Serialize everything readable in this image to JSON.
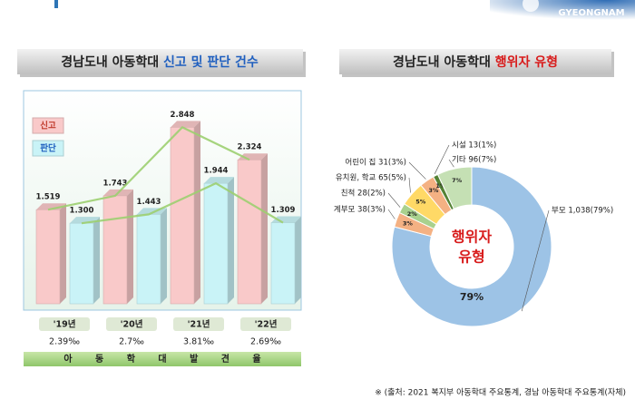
{
  "header": {
    "logo": "GYEONGNAM"
  },
  "chart_data": [
    {
      "type": "bar",
      "title": "경남도내 아동학대",
      "title_highlight": "신고 및 판단 건수",
      "categories": [
        "'19년",
        "'20년",
        "'21년",
        "'22년"
      ],
      "series": [
        {
          "name": "신고",
          "color": "#f9c9c9",
          "values": [
            1519,
            1743,
            2848,
            2324
          ],
          "value_labels": [
            "1.519",
            "1.743",
            "2.848",
            "2.324"
          ]
        },
        {
          "name": "판단",
          "color": "#c9f3f7",
          "values": [
            1300,
            1443,
            1944,
            1309
          ],
          "value_labels": [
            "1.300",
            "1.443",
            "1.944",
            "1.309"
          ]
        }
      ],
      "ylim": [
        0,
        3000
      ],
      "rate_labels": [
        "2.39‰",
        "2.7‰",
        "3.81‰",
        "2.69‰"
      ],
      "rate_title": "아 동 학 대 발 견 율"
    },
    {
      "type": "donut",
      "title": "경남도내 아동학대",
      "title_highlight": "행위자 유형",
      "center_label": [
        "행위자",
        "유형"
      ],
      "categories": [
        "부모 1,038(79%)",
        "계부모 38(3%)",
        "친척 28(2%)",
        "유치원, 학교 65(5%)",
        "어린이 집 31(3%)",
        "시설 13(1%)",
        "기타 96(7%)"
      ],
      "values": [
        79,
        3,
        2,
        5,
        3,
        1,
        7
      ],
      "value_labels": [
        "79%",
        "3%",
        "2%",
        "5%",
        "3%",
        "1%",
        "7%"
      ],
      "colors": [
        "#9dc3e6",
        "#f4b183",
        "#a9d18e",
        "#ffd966",
        "#f4b183",
        "#548235",
        "#c5e0b4"
      ]
    }
  ],
  "footnote": "※ (출처: 2021 복지부 아동학대 주요통계, 경남 아동학대 주요통계(자체)"
}
